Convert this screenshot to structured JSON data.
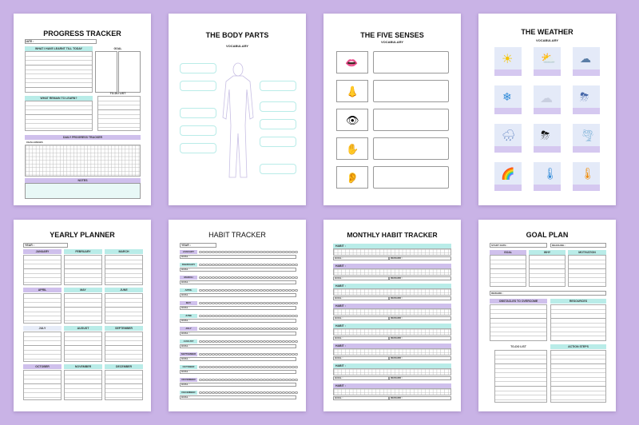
{
  "pages": {
    "progress": {
      "title": "PROGRESS TRACKER",
      "date_label": "DATE :",
      "learned_label": "WHAT I HAVE LEARNT TILL TODAY",
      "goal_label": "GOAL",
      "remain_label": "WHAT REMAIN TO LEARN?",
      "todo_label": "TO-DO LIST",
      "daily_label": "DAILY PROGRESS TRACKER",
      "challenge_label": "CHALLENGES",
      "notes_label": "NOTES"
    },
    "body": {
      "title": "THE BODY PARTS",
      "subtitle": "VOCABULARY"
    },
    "senses": {
      "title": "THE FIVE SENSES",
      "subtitle": "VOCABULARY"
    },
    "weather": {
      "title": "THE WEATHER",
      "subtitle": "VOCABULARY"
    },
    "yearly": {
      "title": "YEARLY PLANNER",
      "year_label": "YEAR :",
      "months": [
        "JANUARY",
        "FEBRUARY",
        "MARCH",
        "APRIL",
        "MAY",
        "JUNE",
        "JULY",
        "AUGUST",
        "SEPTEMBER",
        "OCTOBER",
        "NOVEMBER",
        "DECEMBER"
      ]
    },
    "habit": {
      "title": "HABIT TRACKER",
      "year_label": "YEAR :",
      "goal_label": "GOAL :",
      "months": [
        "JANUARY",
        "FEBRUARY",
        "MARCH",
        "APRIL",
        "MAY",
        "JUNE",
        "JULY",
        "AUGUST",
        "SEPTEMBER",
        "OCTOBER",
        "NOVEMBER",
        "DECEMBER"
      ]
    },
    "monthly": {
      "title": "MONTHLY HABIT TRACKER",
      "habit_label": "HABIT :",
      "goal_label": "GOAL :",
      "reward_label": "REWARD :"
    },
    "goal": {
      "title": "GOAL PLAN",
      "start_label": "START DATE :",
      "deadline_label": "DEADLINE :",
      "goal_label": "GOAL",
      "why_label": "WHY",
      "motivation_label": "MOTIVATION",
      "reward_label": "REWARD :",
      "obstacles_label": "OBSTACLES TO OVERCOME",
      "resources_label": "RESOURCES",
      "todo_label": "TO-DO LIST",
      "action_label": "ACTION STEPS"
    }
  },
  "colors": {
    "background": "#c9b3e6",
    "teal": "#b9ece8",
    "lavender": "#cfc0ec"
  }
}
